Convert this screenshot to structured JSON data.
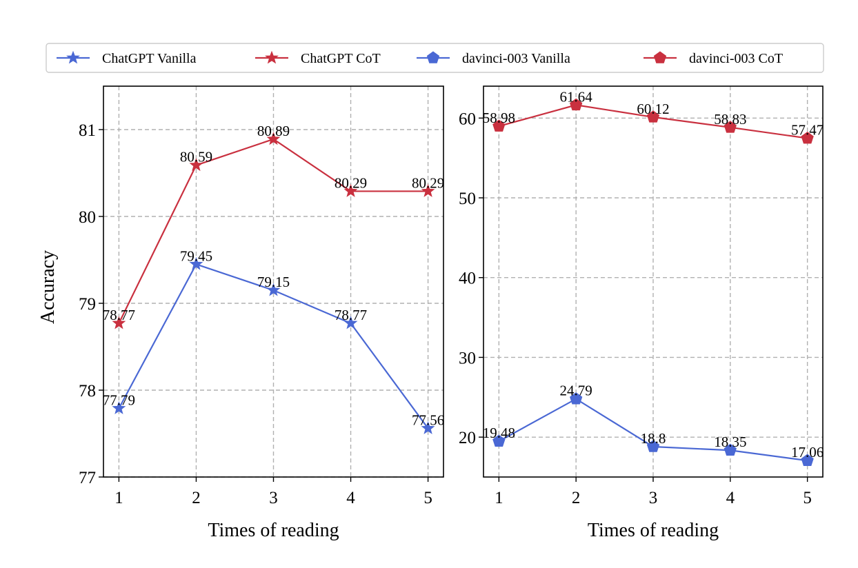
{
  "legend": {
    "entries": [
      {
        "label": "ChatGPT Vanilla",
        "color": "#4a68d4",
        "marker": "star"
      },
      {
        "label": "ChatGPT CoT",
        "color": "#c9303f",
        "marker": "star"
      },
      {
        "label": "davinci-003 Vanilla",
        "color": "#4a68d4",
        "marker": "pentagon"
      },
      {
        "label": "davinci-003 CoT",
        "color": "#c9303f",
        "marker": "pentagon"
      }
    ],
    "placement": "top"
  },
  "chart_data": [
    {
      "type": "line",
      "xlabel": "Times of reading",
      "ylabel": "Accuracy",
      "x": [
        1,
        2,
        3,
        4,
        5
      ],
      "xticks": [
        "1",
        "2",
        "3",
        "4",
        "5"
      ],
      "xlim": [
        0.8,
        5.2
      ],
      "ylim": [
        77,
        81.5
      ],
      "yticks": [
        "77",
        "78",
        "79",
        "80",
        "81"
      ],
      "grid": true,
      "series": [
        {
          "name": "ChatGPT CoT",
          "color": "#c9303f",
          "marker": "star",
          "values": [
            78.77,
            80.59,
            80.89,
            80.29,
            80.29
          ],
          "labels": [
            "78.77",
            "80.59",
            "80.89",
            "80.29",
            "80.29"
          ]
        },
        {
          "name": "ChatGPT Vanilla",
          "color": "#4a68d4",
          "marker": "star",
          "values": [
            77.79,
            79.45,
            79.15,
            78.77,
            77.56
          ],
          "labels": [
            "77.79",
            "79.45",
            "79.15",
            "78.77",
            "77.56"
          ]
        }
      ]
    },
    {
      "type": "line",
      "xlabel": "Times of reading",
      "ylabel": "",
      "x": [
        1,
        2,
        3,
        4,
        5
      ],
      "xticks": [
        "1",
        "2",
        "3",
        "4",
        "5"
      ],
      "xlim": [
        0.8,
        5.2
      ],
      "ylim": [
        15,
        64
      ],
      "yticks": [
        "20",
        "30",
        "40",
        "50",
        "60"
      ],
      "grid": true,
      "series": [
        {
          "name": "davinci-003 CoT",
          "color": "#c9303f",
          "marker": "pentagon",
          "values": [
            58.98,
            61.64,
            60.12,
            58.83,
            57.47
          ],
          "labels": [
            "58.98",
            "61.64",
            "60.12",
            "58.83",
            "57.47"
          ]
        },
        {
          "name": "davinci-003 Vanilla",
          "color": "#4a68d4",
          "marker": "pentagon",
          "values": [
            19.48,
            24.79,
            18.8,
            18.35,
            17.06
          ],
          "labels": [
            "19.48",
            "24.79",
            "18.8",
            "18.35",
            "17.06"
          ]
        }
      ]
    }
  ]
}
